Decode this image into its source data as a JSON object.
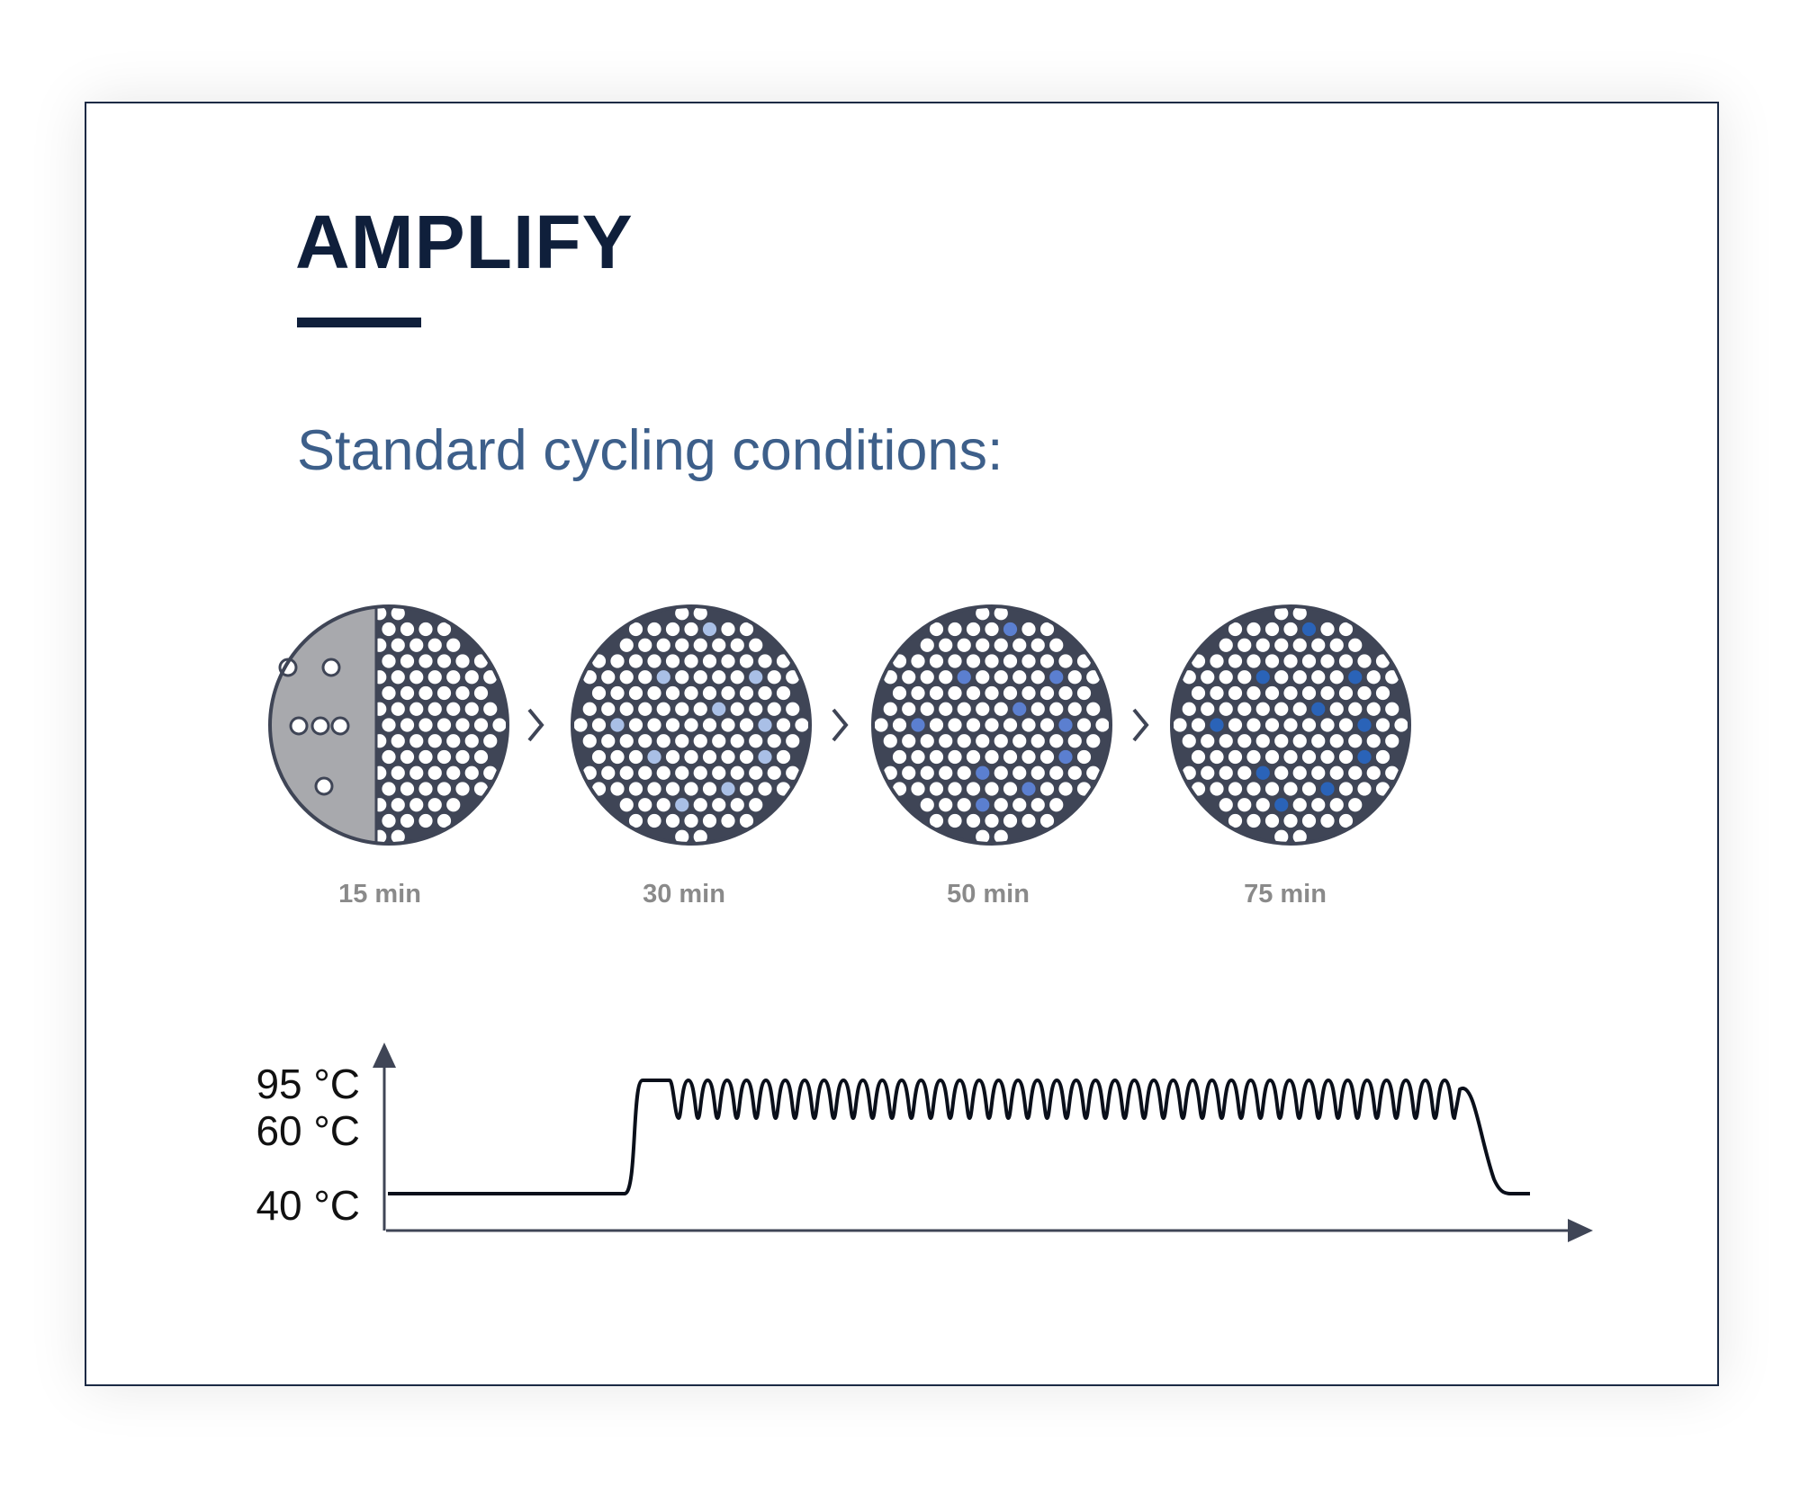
{
  "slide": {
    "title": "AMPLIFY",
    "subtitle": "Standard cycling conditions:"
  },
  "stages": [
    {
      "time_label": "15 min"
    },
    {
      "time_label": "30 min"
    },
    {
      "time_label": "50 min"
    },
    {
      "time_label": "75 min"
    }
  ],
  "temperature_axis": {
    "labels": [
      "95 °C",
      "60 °C",
      "40 °C"
    ]
  },
  "colors": {
    "title": "#0f1f3b",
    "subtitle": "#3d5f8a",
    "disc": "#3f4556",
    "light_blue": "#a9bfe6",
    "mid_blue": "#5b7fd0",
    "dark_blue": "#2a63b8",
    "loading_gray": "#a8a9ad"
  }
}
